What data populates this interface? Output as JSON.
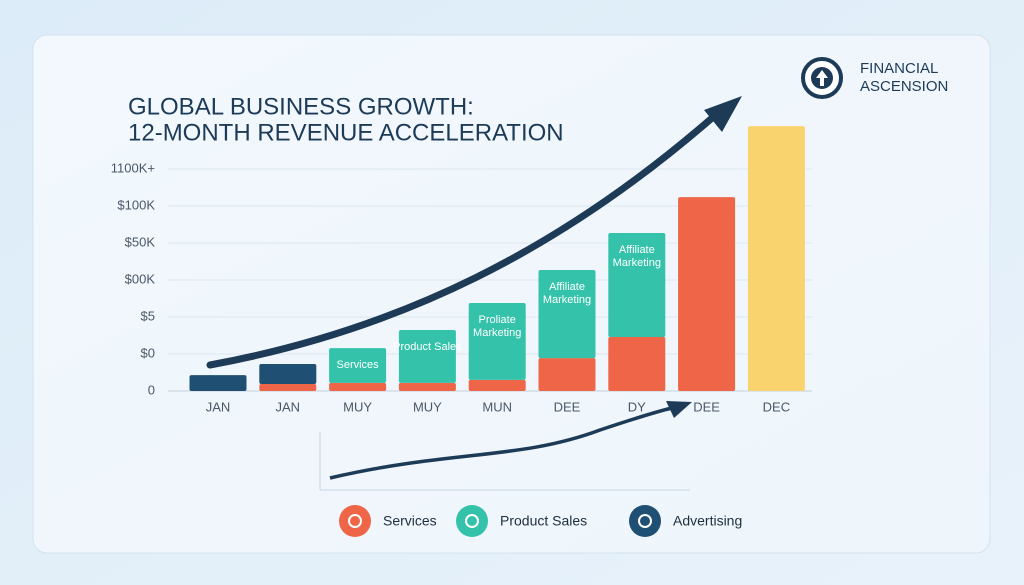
{
  "chart_data": {
    "type": "stacked_bar",
    "title": "GLOBAL BUSINESS GROWTH:",
    "subtitle": "12-MONTH REVENUE ACCELERATION",
    "brand": [
      "FINANCIAL",
      "ASCENSION"
    ],
    "categories": [
      "JAN",
      "JAN",
      "MUY",
      "MUY",
      "MUN",
      "DEE",
      "DY",
      "DEE",
      "DEC"
    ],
    "series": [
      {
        "name": "Services",
        "color": "#ee6547",
        "values": [
          null,
          0.19,
          0.22,
          0.22,
          0.3,
          0.89,
          1.46,
          5.24,
          7.16
        ]
      },
      {
        "name": "Product Sales",
        "color": "#34c3aa",
        "values": [
          null,
          null,
          0.94,
          1.43,
          2.08,
          2.38,
          2.81,
          null,
          null
        ]
      },
      {
        "name": "Advertising",
        "color": "#1f4f73",
        "values": [
          0.43,
          0.54,
          null,
          null,
          null,
          null,
          null,
          null,
          null
        ]
      }
    ],
    "highlight": {
      "index": 8,
      "color": "#f9d36e"
    },
    "bar_labels": [
      null,
      null,
      [
        "Services"
      ],
      [
        "Product Sales"
      ],
      [
        "Proliate",
        "Marketing"
      ],
      [
        "Affiliate",
        "Marketing"
      ],
      [
        "Affiliate",
        "Marketing"
      ],
      null,
      null
    ],
    "ylim": [
      0,
      7.5
    ],
    "yticks": [
      {
        "value": 0,
        "label": "0"
      },
      {
        "value": 1,
        "label": "$0"
      },
      {
        "value": 2,
        "label": "$5"
      },
      {
        "value": 3,
        "label": "$00K"
      },
      {
        "value": 4,
        "label": "$50K"
      },
      {
        "value": 5,
        "label": "$100K"
      },
      {
        "value": 6,
        "label": "1100K+"
      }
    ],
    "grid": true,
    "legend": "bottom"
  }
}
